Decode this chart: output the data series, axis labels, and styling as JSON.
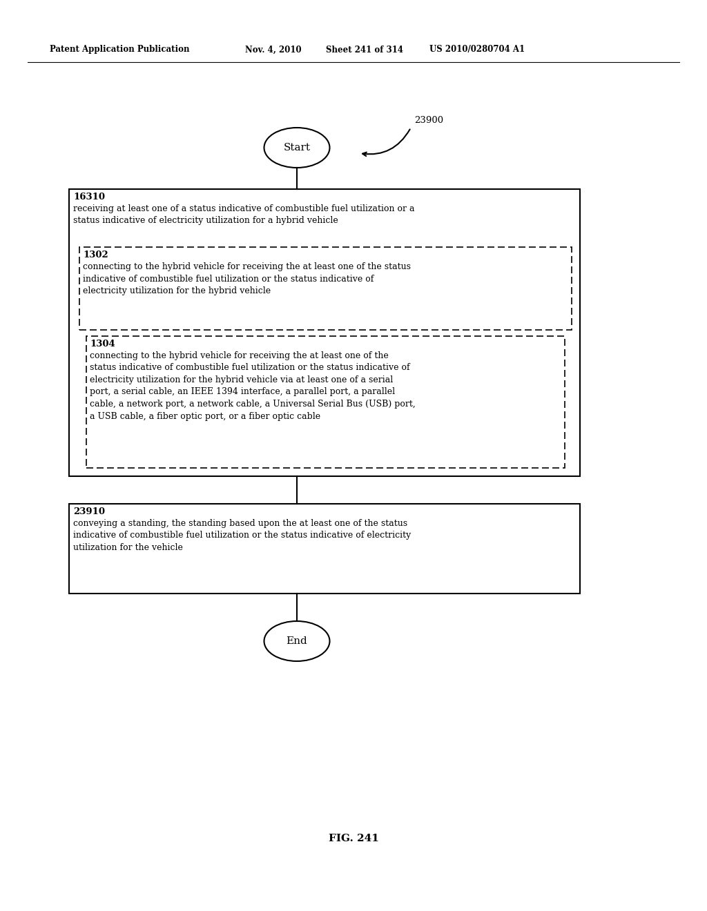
{
  "bg_color": "#ffffff",
  "header_text": "Patent Application Publication",
  "header_date": "Nov. 4, 2010",
  "header_sheet": "Sheet 241 of 314",
  "header_patent": "US 2010/0280704 A1",
  "fig_label": "FIG. 241",
  "start_label": "Start",
  "end_label": "End",
  "ref_number": "23900",
  "box1_id": "16310",
  "box1_text": "receiving at least one of a status indicative of combustible fuel utilization or a\nstatus indicative of electricity utilization for a hybrid vehicle",
  "box2_id": "1302",
  "box2_text": "connecting to the hybrid vehicle for receiving the at least one of the status\nindicative of combustible fuel utilization or the status indicative of\nelectricity utilization for the hybrid vehicle",
  "box3_id": "1304",
  "box3_text": "connecting to the hybrid vehicle for receiving the at least one of the\nstatus indicative of combustible fuel utilization or the status indicative of\nelectricity utilization for the hybrid vehicle via at least one of a serial\nport, a serial cable, an IEEE 1394 interface, a parallel port, a parallel\ncable, a network port, a network cable, a Universal Serial Bus (USB) port,\na USB cable, a fiber optic port, or a fiber optic cable",
  "box4_id": "23910",
  "box4_text": "conveying a standing, the standing based upon the at least one of the status\nindicative of combustible fuel utilization or the status indicative of electricity\nutilization for the vehicle"
}
